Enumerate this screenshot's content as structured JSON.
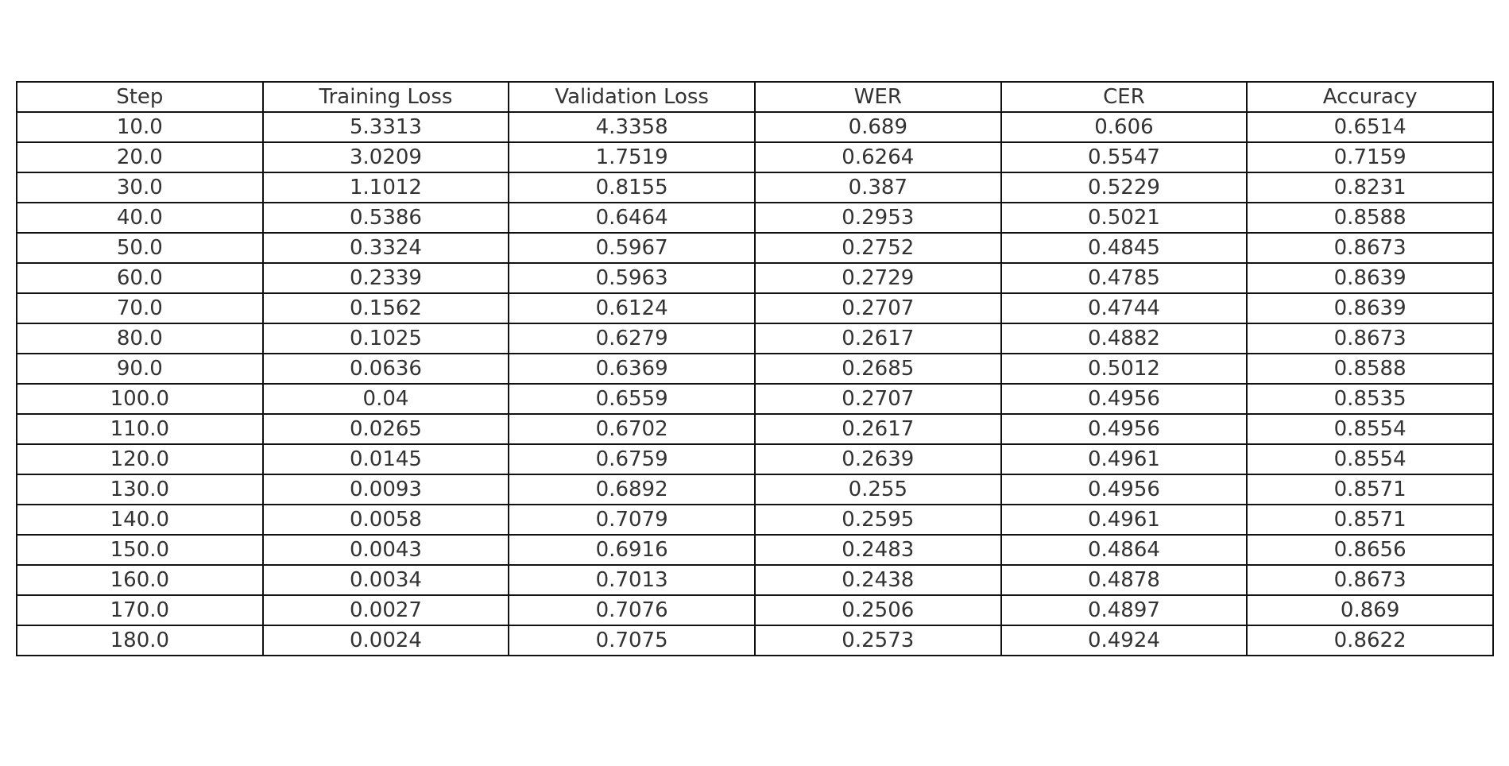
{
  "chart_data": {
    "type": "table",
    "columns": [
      "Step",
      "Training Loss",
      "Validation Loss",
      "WER",
      "CER",
      "Accuracy"
    ],
    "rows": [
      [
        "10.0",
        "5.3313",
        "4.3358",
        "0.689",
        "0.606",
        "0.6514"
      ],
      [
        "20.0",
        "3.0209",
        "1.7519",
        "0.6264",
        "0.5547",
        "0.7159"
      ],
      [
        "30.0",
        "1.1012",
        "0.8155",
        "0.387",
        "0.5229",
        "0.8231"
      ],
      [
        "40.0",
        "0.5386",
        "0.6464",
        "0.2953",
        "0.5021",
        "0.8588"
      ],
      [
        "50.0",
        "0.3324",
        "0.5967",
        "0.2752",
        "0.4845",
        "0.8673"
      ],
      [
        "60.0",
        "0.2339",
        "0.5963",
        "0.2729",
        "0.4785",
        "0.8639"
      ],
      [
        "70.0",
        "0.1562",
        "0.6124",
        "0.2707",
        "0.4744",
        "0.8639"
      ],
      [
        "80.0",
        "0.1025",
        "0.6279",
        "0.2617",
        "0.4882",
        "0.8673"
      ],
      [
        "90.0",
        "0.0636",
        "0.6369",
        "0.2685",
        "0.5012",
        "0.8588"
      ],
      [
        "100.0",
        "0.04",
        "0.6559",
        "0.2707",
        "0.4956",
        "0.8535"
      ],
      [
        "110.0",
        "0.0265",
        "0.6702",
        "0.2617",
        "0.4956",
        "0.8554"
      ],
      [
        "120.0",
        "0.0145",
        "0.6759",
        "0.2639",
        "0.4961",
        "0.8554"
      ],
      [
        "130.0",
        "0.0093",
        "0.6892",
        "0.255",
        "0.4956",
        "0.8571"
      ],
      [
        "140.0",
        "0.0058",
        "0.7079",
        "0.2595",
        "0.4961",
        "0.8571"
      ],
      [
        "150.0",
        "0.0043",
        "0.6916",
        "0.2483",
        "0.4864",
        "0.8656"
      ],
      [
        "160.0",
        "0.0034",
        "0.7013",
        "0.2438",
        "0.4878",
        "0.8673"
      ],
      [
        "170.0",
        "0.0027",
        "0.7076",
        "0.2506",
        "0.4897",
        "0.869"
      ],
      [
        "180.0",
        "0.0024",
        "0.7075",
        "0.2573",
        "0.4924",
        "0.8622"
      ]
    ],
    "colors": {
      "border": "#111111",
      "text": "#333333",
      "background": "#ffffff"
    }
  }
}
